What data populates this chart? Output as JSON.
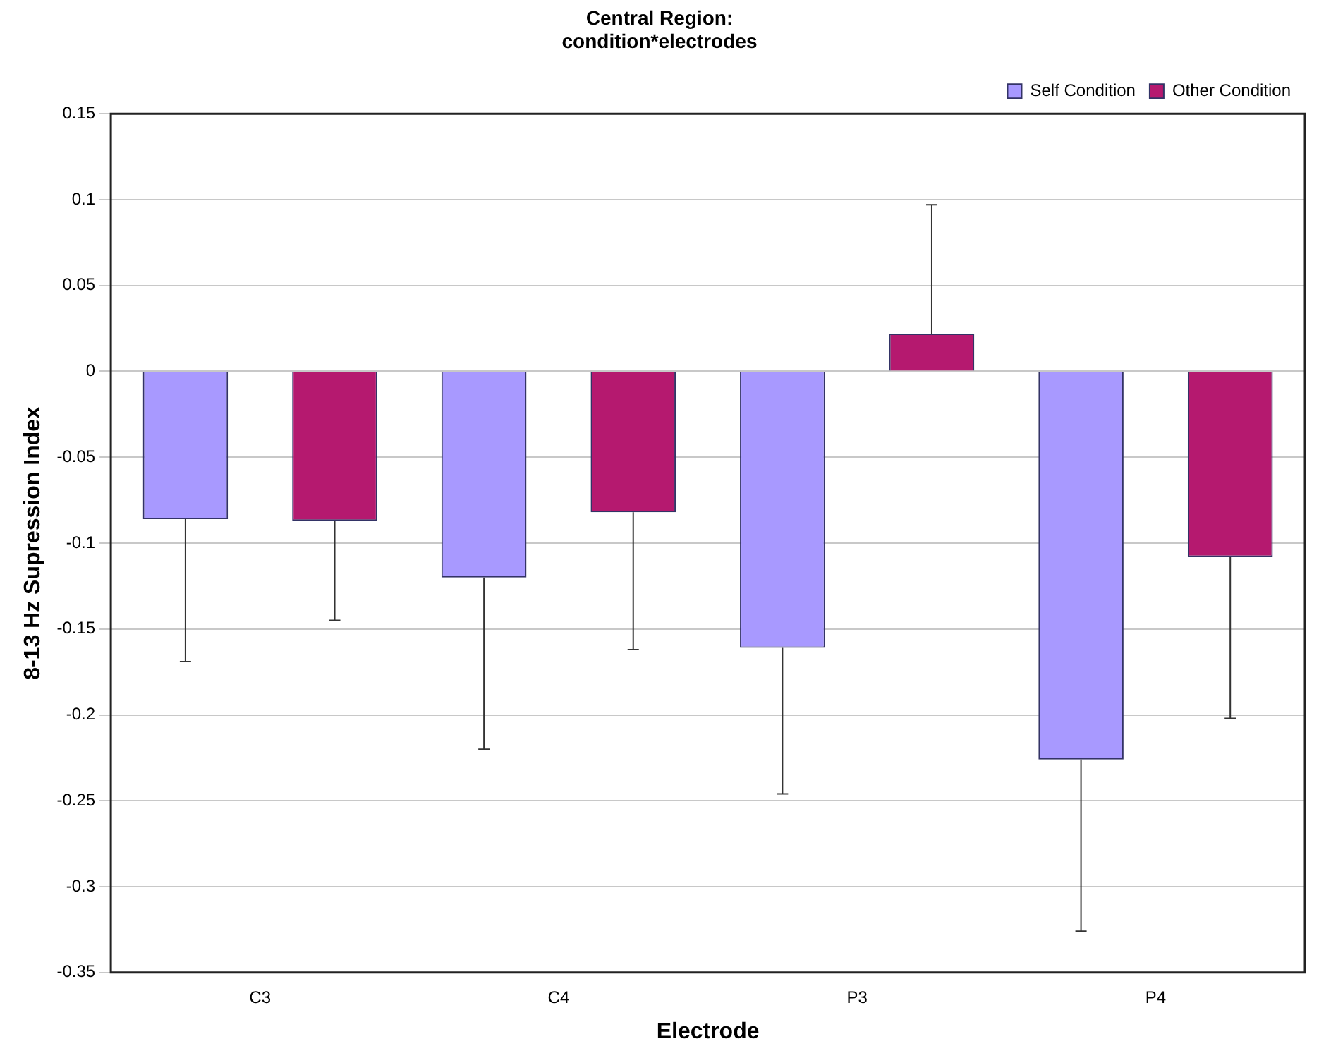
{
  "chart_data": {
    "type": "bar",
    "title": "Central Region:\ncondition*electrodes",
    "xlabel": "Electrode",
    "ylabel": "8-13 Hz Supression Index",
    "categories": [
      "C3",
      "C4",
      "P3",
      "P4"
    ],
    "series": [
      {
        "name": "Self Condition",
        "color": "#a899ff",
        "values": [
          -0.086,
          -0.12,
          -0.161,
          -0.226
        ],
        "errors": [
          [
            -0.169,
            -0.086
          ],
          [
            -0.22,
            -0.12
          ],
          [
            -0.246,
            -0.161
          ],
          [
            -0.326,
            -0.226
          ]
        ]
      },
      {
        "name": "Other Condition",
        "color": "#b5196f",
        "values": [
          -0.087,
          -0.082,
          0.022,
          -0.108
        ],
        "errors": [
          [
            -0.145,
            -0.087
          ],
          [
            -0.162,
            -0.082
          ],
          [
            0.022,
            0.097
          ],
          [
            -0.202,
            -0.108
          ]
        ]
      }
    ],
    "ylim": [
      -0.35,
      0.15
    ],
    "yticks": [
      -0.35,
      -0.3,
      -0.25,
      -0.2,
      -0.15,
      -0.1,
      -0.05,
      0,
      0.05,
      0.1,
      0.15
    ],
    "grid": "y",
    "legend": "top right"
  }
}
